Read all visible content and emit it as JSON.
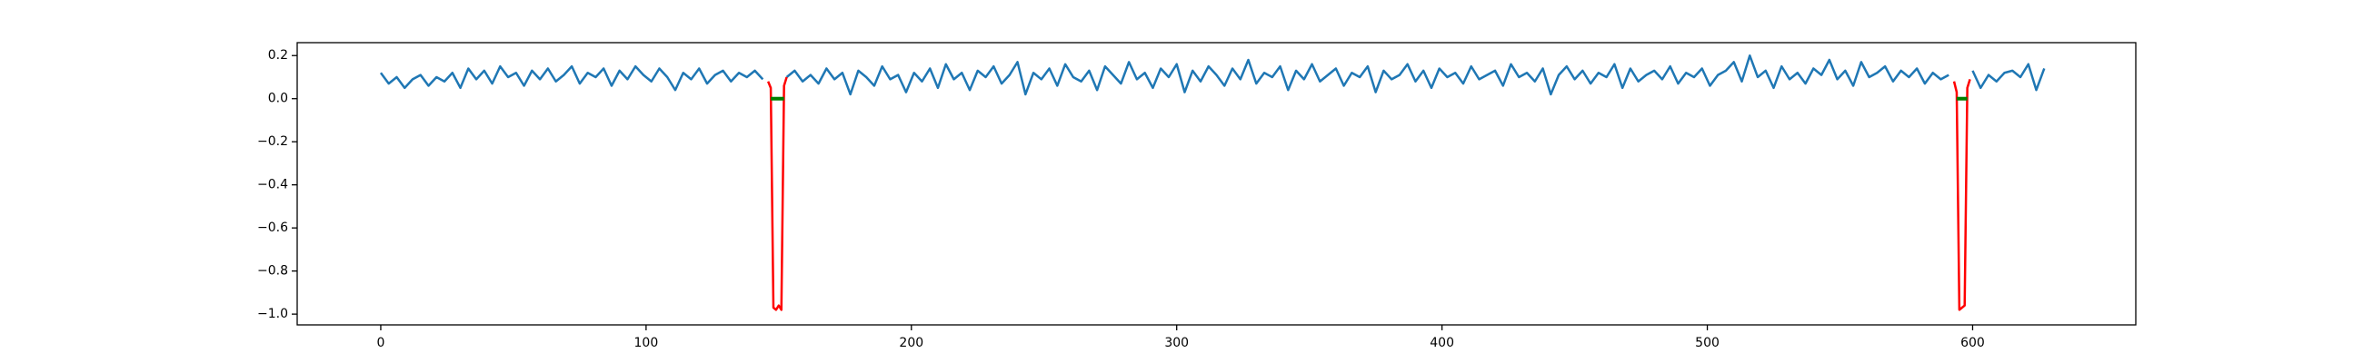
{
  "chart_data": {
    "type": "line",
    "xlim": [
      -31.5,
      661.5
    ],
    "ylim": [
      -1.05,
      0.26
    ],
    "xticks": [
      0,
      100,
      200,
      300,
      400,
      500,
      600
    ],
    "yticks": [
      {
        "value": -1.0,
        "label": "−1.0"
      },
      {
        "value": -0.8,
        "label": "−0.8"
      },
      {
        "value": -0.6,
        "label": "−0.6"
      },
      {
        "value": -0.4,
        "label": "−0.4"
      },
      {
        "value": -0.2,
        "label": "−0.2"
      },
      {
        "value": 0.0,
        "label": "0.0"
      },
      {
        "value": 0.2,
        "label": "0.2"
      }
    ],
    "series": [
      {
        "color": "#1f77b4",
        "width": 2.5,
        "x": [
          0,
          3,
          6,
          9,
          12,
          15,
          18,
          21,
          24,
          27,
          30,
          33,
          36,
          39,
          42,
          45,
          48,
          51,
          54,
          57,
          60,
          63,
          66,
          69,
          72,
          75,
          78,
          81,
          84,
          87,
          90,
          93,
          96,
          99,
          102,
          105,
          108,
          111,
          114,
          117,
          120,
          123,
          126,
          129,
          132,
          135,
          138,
          141,
          144,
          147,
          150,
          153,
          156,
          159,
          162,
          165,
          168,
          171,
          174,
          177,
          180,
          183,
          186,
          189,
          192,
          195,
          198,
          201,
          204,
          207,
          210,
          213,
          216,
          219,
          222,
          225,
          228,
          231,
          234,
          237,
          240,
          243,
          246,
          249,
          252,
          255,
          258,
          261,
          264,
          267,
          270,
          273,
          276,
          279,
          282,
          285,
          288,
          291,
          294,
          297,
          300,
          303,
          306,
          309,
          312,
          315,
          318,
          321,
          324,
          327,
          330,
          333,
          336,
          339,
          342,
          345,
          348,
          351,
          354,
          357,
          360,
          363,
          366,
          369,
          372,
          375,
          378,
          381,
          384,
          387,
          390,
          393,
          396,
          399,
          402,
          405,
          408,
          411,
          414,
          417,
          420,
          423,
          426,
          429,
          432,
          435,
          438,
          441,
          444,
          447,
          450,
          453,
          456,
          459,
          462,
          465,
          468,
          471,
          474,
          477,
          480,
          483,
          486,
          489,
          492,
          495,
          498,
          501,
          504,
          507,
          510,
          513,
          516,
          519,
          522,
          525,
          528,
          531,
          534,
          537,
          540,
          543,
          546,
          549,
          552,
          555,
          558,
          561,
          564,
          567,
          570,
          573,
          576,
          579,
          582,
          585,
          588,
          591,
          594,
          597,
          600,
          603,
          606,
          609,
          612,
          615,
          618,
          621,
          624,
          627
        ],
        "values": [
          0.12,
          0.07,
          0.1,
          0.05,
          0.09,
          0.11,
          0.06,
          0.1,
          0.08,
          0.12,
          0.05,
          0.14,
          0.09,
          0.13,
          0.07,
          0.15,
          0.1,
          0.12,
          0.06,
          0.13,
          0.09,
          0.14,
          0.08,
          0.11,
          0.15,
          0.07,
          0.12,
          0.1,
          0.14,
          0.06,
          0.13,
          0.09,
          0.15,
          0.11,
          0.08,
          0.14,
          0.1,
          0.04,
          0.12,
          0.09,
          0.14,
          0.07,
          0.11,
          0.13,
          0.08,
          0.12,
          0.1,
          0.13,
          0.09,
          null,
          null,
          0.1,
          0.13,
          0.08,
          0.11,
          0.07,
          0.14,
          0.09,
          0.12,
          0.02,
          0.13,
          0.1,
          0.06,
          0.15,
          0.09,
          0.11,
          0.03,
          0.12,
          0.08,
          0.14,
          0.05,
          0.16,
          0.09,
          0.12,
          0.04,
          0.13,
          0.1,
          0.15,
          0.07,
          0.11,
          0.17,
          0.02,
          0.12,
          0.09,
          0.14,
          0.06,
          0.16,
          0.1,
          0.08,
          0.13,
          0.04,
          0.15,
          0.11,
          0.07,
          0.17,
          0.09,
          0.12,
          0.05,
          0.14,
          0.1,
          0.16,
          0.03,
          0.13,
          0.08,
          0.15,
          0.11,
          0.06,
          0.14,
          0.09,
          0.18,
          0.07,
          0.12,
          0.1,
          0.15,
          0.04,
          0.13,
          0.09,
          0.16,
          0.08,
          0.11,
          0.14,
          0.06,
          0.12,
          0.1,
          0.15,
          0.03,
          0.13,
          0.09,
          0.11,
          0.16,
          0.08,
          0.13,
          0.05,
          0.14,
          0.1,
          0.12,
          0.07,
          0.15,
          0.09,
          0.11,
          0.13,
          0.06,
          0.16,
          0.1,
          0.12,
          0.08,
          0.14,
          0.02,
          0.11,
          0.15,
          0.09,
          0.13,
          0.07,
          0.12,
          0.1,
          0.16,
          0.05,
          0.14,
          0.08,
          0.11,
          0.13,
          0.09,
          0.15,
          0.07,
          0.12,
          0.1,
          0.14,
          0.06,
          0.11,
          0.13,
          0.17,
          0.08,
          0.2,
          0.1,
          0.13,
          0.05,
          0.15,
          0.09,
          0.12,
          0.07,
          0.14,
          0.11,
          0.18,
          0.09,
          0.13,
          0.06,
          0.17,
          0.1,
          0.12,
          0.15,
          0.08,
          0.13,
          0.1,
          0.14,
          0.07,
          0.12,
          0.09,
          0.11,
          null,
          null,
          0.13,
          0.05,
          0.11,
          0.08,
          0.12,
          0.13,
          0.1,
          0.16,
          0.04,
          0.14
        ]
      },
      {
        "color": "red",
        "width": 2.5,
        "x": [
          146,
          147,
          148,
          149,
          150,
          151,
          152,
          153
        ],
        "values": [
          0.08,
          0.05,
          -0.97,
          -0.98,
          -0.96,
          -0.98,
          0.06,
          0.1
        ]
      },
      {
        "color": "red",
        "width": 2.5,
        "x": [
          593,
          594,
          595,
          596,
          597,
          598,
          599
        ],
        "values": [
          0.08,
          0.03,
          -0.98,
          -0.97,
          -0.96,
          0.05,
          0.09
        ]
      },
      {
        "color": "green",
        "width": 4,
        "x": [
          147,
          152
        ],
        "values": [
          0,
          0
        ]
      },
      {
        "color": "green",
        "width": 4,
        "x": [
          594,
          598
        ],
        "values": [
          0,
          0
        ]
      }
    ]
  }
}
